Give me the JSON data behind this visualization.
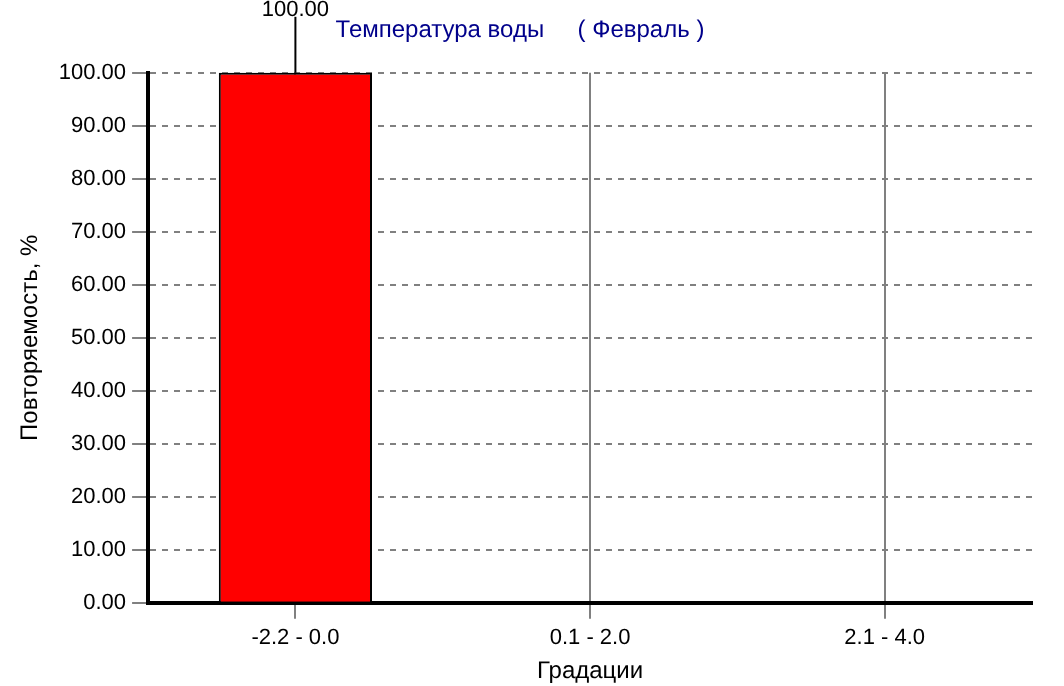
{
  "chart_data": {
    "type": "bar",
    "title": "Температура воды     ( Февраль )",
    "xlabel": "Градации",
    "ylabel": "Повторяемость, %",
    "categories": [
      "-2.2 - 0.0",
      "0.1 - 2.0",
      "2.1 - 4.0"
    ],
    "values": [
      100,
      0,
      0
    ],
    "color": "#ff0000",
    "value_labels": [
      "100.00",
      null,
      null
    ],
    "ylim": [
      0,
      100
    ],
    "yticks": [
      {
        "value": 0,
        "label": "0.00"
      },
      {
        "value": 10,
        "label": "10.00"
      },
      {
        "value": 20,
        "label": "20.00"
      },
      {
        "value": 30,
        "label": "30.00"
      },
      {
        "value": 40,
        "label": "40.00"
      },
      {
        "value": 50,
        "label": "50.00"
      },
      {
        "value": 60,
        "label": "60.00"
      },
      {
        "value": 70,
        "label": "70.00"
      },
      {
        "value": 80,
        "label": "80.00"
      },
      {
        "value": 90,
        "label": "90.00"
      },
      {
        "value": 100,
        "label": "100.00"
      }
    ],
    "grid": true,
    "legend": false
  }
}
